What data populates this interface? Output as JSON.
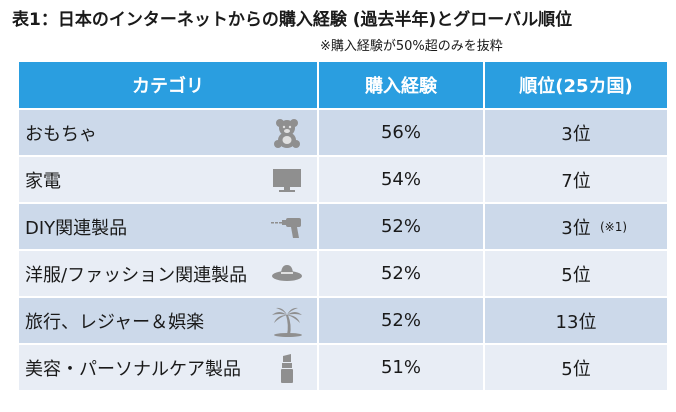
{
  "title": "表1：日本のインターネットからの購入経験 (過去半年)とグローバル順位",
  "subtitle": "※購入経験が50%超のみを抜粋",
  "headers": {
    "category": "カテゴリ",
    "purchase": "購入経験",
    "rank": "順位(25カ国)"
  },
  "rows": [
    {
      "category": "おもちゃ",
      "purchase": "56%",
      "rank": "3位",
      "note": "",
      "icon": "teddy-bear-icon"
    },
    {
      "category": "家電",
      "purchase": "54%",
      "rank": "7位",
      "note": "",
      "icon": "monitor-icon"
    },
    {
      "category": "DIY関連製品",
      "purchase": "52%",
      "rank": "3位",
      "note": "(※1)",
      "icon": "drill-icon"
    },
    {
      "category": "洋服/ファッション関連製品",
      "purchase": "52%",
      "rank": "5位",
      "note": "",
      "icon": "hat-icon"
    },
    {
      "category": "旅行、レジャー＆娯楽",
      "purchase": "52%",
      "rank": "13位",
      "note": "",
      "icon": "palm-tree-icon"
    },
    {
      "category": "美容・パーソナルケア製品",
      "purchase": "51%",
      "rank": "5位",
      "note": "",
      "icon": "lipstick-icon"
    }
  ],
  "colors": {
    "header": "#2a9ee0",
    "row_dark": "#ccd9ea",
    "row_light": "#e8edf5",
    "icon": "#8f8f8f"
  }
}
